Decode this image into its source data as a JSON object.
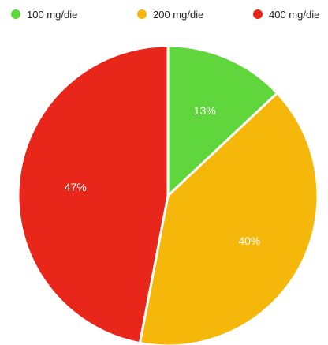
{
  "chart_data": {
    "type": "pie",
    "categories": [
      "100 mg/die",
      "200 mg/die",
      "400 mg/die"
    ],
    "values": [
      13,
      40,
      47
    ],
    "labels": [
      "13%",
      "40%",
      "47%"
    ],
    "colors": [
      "#5fd73c",
      "#f5b80a",
      "#e8261a"
    ],
    "legend_position": "top"
  }
}
